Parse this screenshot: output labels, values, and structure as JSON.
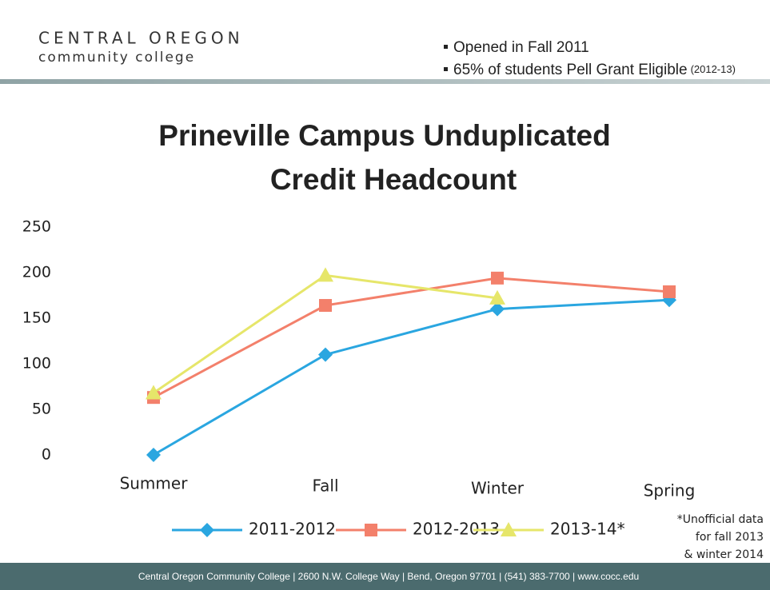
{
  "header": {
    "logo_top": "CENTRAL OREGON",
    "logo_bottom": "community college",
    "bullets": [
      "Opened in Fall 2011",
      "65% of students Pell Grant Eligible"
    ],
    "bullet_note": "(2012-13)"
  },
  "footer": "Central Oregon Community College | 2600 N.W. College Way | Bend, Oregon 97701 | (541) 383-7700 | www.cocc.edu",
  "chart_data": {
    "type": "line",
    "title": [
      "Prineville Campus Unduplicated",
      "Credit Headcount"
    ],
    "categories": [
      "Summer",
      "Fall",
      "Winter",
      "Spring"
    ],
    "series": [
      {
        "name": "2011-2012",
        "color": "#2aa6e0",
        "marker": "diamond",
        "values": [
          0,
          110,
          160,
          170
        ]
      },
      {
        "name": "2012-2013",
        "color": "#f3806b",
        "marker": "square",
        "values": [
          63,
          164,
          194,
          179
        ]
      },
      {
        "name": "2013-14*",
        "color": "#e6e66a",
        "marker": "triangle",
        "values": [
          68,
          197,
          172,
          null
        ]
      }
    ],
    "ylim": [
      0,
      250
    ],
    "yticks": [
      0,
      50,
      100,
      150,
      200,
      250
    ],
    "grid": false,
    "legend": "bottom",
    "note": [
      "*Unofficial data",
      "for fall 2013",
      "& winter 2014"
    ]
  }
}
